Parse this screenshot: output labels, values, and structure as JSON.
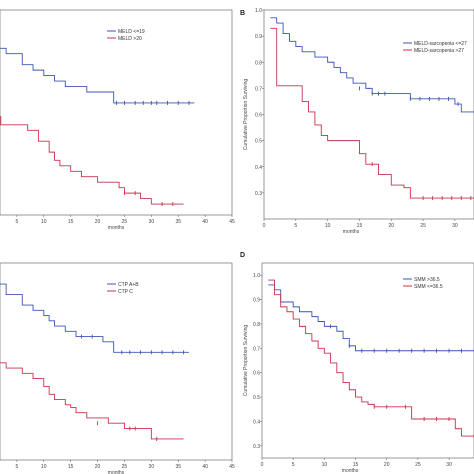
{
  "colors": {
    "blue": "#3c55b4",
    "red": "#c8324b",
    "axis": "#555555"
  },
  "chart_data": [
    {
      "type": "line",
      "panel": "",
      "xlabel": "months",
      "ylabel": "",
      "xlim": [
        0,
        45
      ],
      "ylim": [
        0.25,
        1.0
      ],
      "xticks": [
        "5",
        "10",
        "15",
        "20",
        "25",
        "30",
        "35",
        "40",
        "45"
      ],
      "yticks": [],
      "legend_position": "top-right",
      "series": [
        {
          "name": "MELD <=19",
          "color_key": "blue",
          "x": [
            0,
            2,
            3,
            5,
            6,
            8,
            10,
            12,
            14,
            18,
            20,
            22,
            23,
            38
          ],
          "y": [
            0.86,
            0.86,
            0.84,
            0.84,
            0.8,
            0.78,
            0.76,
            0.74,
            0.72,
            0.7,
            0.7,
            0.7,
            0.66,
            0.66
          ],
          "censored": [
            [
              23.5,
              0.66
            ],
            [
              25,
              0.66
            ],
            [
              27,
              0.66
            ],
            [
              28.5,
              0.66
            ],
            [
              30,
              0.66
            ],
            [
              31,
              0.66
            ],
            [
              33,
              0.66
            ],
            [
              35,
              0.66
            ],
            [
              37,
              0.66
            ]
          ]
        },
        {
          "name": "MELD >20",
          "color_key": "red",
          "x": [
            0,
            1,
            2,
            4,
            7,
            9,
            11,
            12,
            13,
            15,
            17,
            20,
            24,
            25,
            28,
            30,
            36
          ],
          "y": [
            0.61,
            0.61,
            0.58,
            0.58,
            0.56,
            0.52,
            0.48,
            0.45,
            0.43,
            0.41,
            0.39,
            0.37,
            0.35,
            0.33,
            0.31,
            0.29,
            0.29
          ],
          "censored": [
            [
              25,
              0.33
            ],
            [
              27,
              0.33
            ],
            [
              32,
              0.29
            ],
            [
              34,
              0.29
            ]
          ]
        }
      ]
    },
    {
      "type": "line",
      "panel": "B",
      "xlabel": "months",
      "ylabel": "Cumulative Proportion Surviving",
      "xlim": [
        0,
        33
      ],
      "ylim": [
        0.2,
        1.0
      ],
      "xticks": [
        "0",
        "5",
        "10",
        "15",
        "20",
        "25",
        "30"
      ],
      "yticks": [
        "0.3",
        "0.4",
        "0.5",
        "0.6",
        "0.7",
        "0.8",
        "0.9",
        "1.0"
      ],
      "legend_position": "top-right",
      "series": [
        {
          "name": "MELD-sarcopenia <=27",
          "color_key": "blue",
          "x": [
            1,
            2,
            3,
            4,
            5,
            6,
            8,
            9,
            10,
            11,
            12,
            13,
            14,
            16,
            17,
            18,
            20,
            22,
            23,
            24,
            26,
            27,
            28,
            30,
            31,
            33
          ],
          "y": [
            0.97,
            0.95,
            0.91,
            0.88,
            0.86,
            0.84,
            0.82,
            0.82,
            0.8,
            0.78,
            0.76,
            0.74,
            0.72,
            0.7,
            0.68,
            0.68,
            0.68,
            0.68,
            0.66,
            0.66,
            0.66,
            0.66,
            0.66,
            0.64,
            0.61,
            0.61
          ],
          "censored": [
            [
              15,
              0.7
            ],
            [
              17,
              0.68
            ],
            [
              18,
              0.68
            ],
            [
              19,
              0.68
            ],
            [
              23,
              0.66
            ],
            [
              24.5,
              0.66
            ],
            [
              26,
              0.66
            ],
            [
              27.5,
              0.66
            ],
            [
              29,
              0.66
            ],
            [
              30.5,
              0.64
            ]
          ]
        },
        {
          "name": "MELD-sarcopenia >27",
          "color_key": "red",
          "x": [
            1,
            2,
            3,
            6,
            7,
            8,
            9,
            10,
            12,
            15,
            16,
            18,
            20,
            22,
            23,
            33
          ],
          "y": [
            0.93,
            0.71,
            0.71,
            0.65,
            0.61,
            0.56,
            0.52,
            0.5,
            0.5,
            0.45,
            0.41,
            0.37,
            0.33,
            0.32,
            0.28,
            0.28
          ],
          "censored": [
            [
              17,
              0.41
            ],
            [
              25,
              0.28
            ],
            [
              26.5,
              0.28
            ],
            [
              28,
              0.28
            ],
            [
              29.5,
              0.28
            ],
            [
              31,
              0.28
            ],
            [
              32.5,
              0.28
            ]
          ]
        }
      ]
    },
    {
      "type": "line",
      "panel": "",
      "xlabel": "months",
      "ylabel": "",
      "xlim": [
        0,
        45
      ],
      "ylim": [
        0.25,
        1.0
      ],
      "xticks": [
        "5",
        "10",
        "15",
        "20",
        "25",
        "30",
        "35",
        "40",
        "45"
      ],
      "yticks": [],
      "legend_position": "top-right",
      "series": [
        {
          "name": "CTP A+B",
          "color_key": "blue",
          "x": [
            0,
            2,
            3,
            5,
            6,
            8,
            10,
            11,
            12,
            14,
            16,
            19,
            21,
            23,
            37
          ],
          "y": [
            0.92,
            0.92,
            0.88,
            0.88,
            0.84,
            0.82,
            0.8,
            0.78,
            0.76,
            0.74,
            0.72,
            0.72,
            0.7,
            0.66,
            0.66
          ],
          "censored": [
            [
              17,
              0.72
            ],
            [
              19,
              0.72
            ],
            [
              24.5,
              0.66
            ],
            [
              26,
              0.66
            ],
            [
              28,
              0.66
            ],
            [
              30,
              0.66
            ],
            [
              32,
              0.66
            ],
            [
              34,
              0.66
            ],
            [
              36,
              0.66
            ]
          ]
        },
        {
          "name": "CTP C",
          "color_key": "red",
          "x": [
            0,
            1,
            3,
            5,
            6,
            8,
            10,
            11,
            12,
            14,
            15,
            16,
            18,
            22,
            25,
            29,
            30,
            36
          ],
          "y": [
            0.62,
            0.62,
            0.6,
            0.6,
            0.58,
            0.56,
            0.53,
            0.5,
            0.48,
            0.46,
            0.45,
            0.43,
            0.41,
            0.39,
            0.37,
            0.37,
            0.33,
            0.33
          ],
          "censored": [
            [
              20,
              0.39
            ],
            [
              26,
              0.37
            ],
            [
              27,
              0.37
            ],
            [
              31,
              0.33
            ]
          ]
        }
      ]
    },
    {
      "type": "line",
      "panel": "D",
      "xlabel": "months",
      "ylabel": "Cumulative Proportion Surviving",
      "xlim": [
        0,
        34
      ],
      "ylim": [
        0.25,
        1.05
      ],
      "xticks": [
        "0",
        "5",
        "10",
        "15",
        "20",
        "25",
        "30"
      ],
      "yticks": [
        "0.3",
        "0.4",
        "0.5",
        "0.6",
        "0.7",
        "0.8",
        "0.9",
        "1.0"
      ],
      "legend_position": "top-right",
      "series": [
        {
          "name": "SMM >36.5",
          "color_key": "blue",
          "x": [
            1,
            2,
            3,
            5,
            6,
            8,
            9,
            10,
            12,
            13,
            14,
            15,
            34
          ],
          "y": [
            0.96,
            0.94,
            0.89,
            0.87,
            0.85,
            0.83,
            0.81,
            0.79,
            0.77,
            0.74,
            0.71,
            0.69,
            0.69
          ],
          "censored": [
            [
              11,
              0.79
            ],
            [
              14,
              0.71
            ],
            [
              16,
              0.69
            ],
            [
              18,
              0.69
            ],
            [
              20,
              0.69
            ],
            [
              22,
              0.69
            ],
            [
              24,
              0.69
            ],
            [
              26,
              0.69
            ],
            [
              28,
              0.69
            ],
            [
              30,
              0.69
            ],
            [
              32,
              0.69
            ]
          ]
        },
        {
          "name": "SMM <=36.5",
          "color_key": "red",
          "x": [
            1,
            2,
            3,
            4,
            5,
            6,
            7,
            8,
            9,
            10,
            11,
            12,
            13,
            14,
            15,
            16,
            17,
            18,
            19,
            21,
            22,
            24,
            25,
            26,
            27,
            28,
            29,
            30,
            31,
            32,
            33,
            34
          ],
          "y": [
            0.98,
            0.92,
            0.87,
            0.85,
            0.82,
            0.79,
            0.76,
            0.73,
            0.7,
            0.68,
            0.64,
            0.6,
            0.56,
            0.53,
            0.5,
            0.48,
            0.47,
            0.46,
            0.46,
            0.46,
            0.46,
            0.41,
            0.41,
            0.41,
            0.41,
            0.41,
            0.41,
            0.41,
            0.37,
            0.34,
            0.34,
            0.34
          ],
          "censored": [
            [
              18,
              0.46
            ],
            [
              20,
              0.46
            ],
            [
              23,
              0.46
            ],
            [
              26,
              0.41
            ],
            [
              28,
              0.41
            ],
            [
              30,
              0.41
            ],
            [
              34,
              0.34
            ]
          ]
        }
      ]
    }
  ]
}
